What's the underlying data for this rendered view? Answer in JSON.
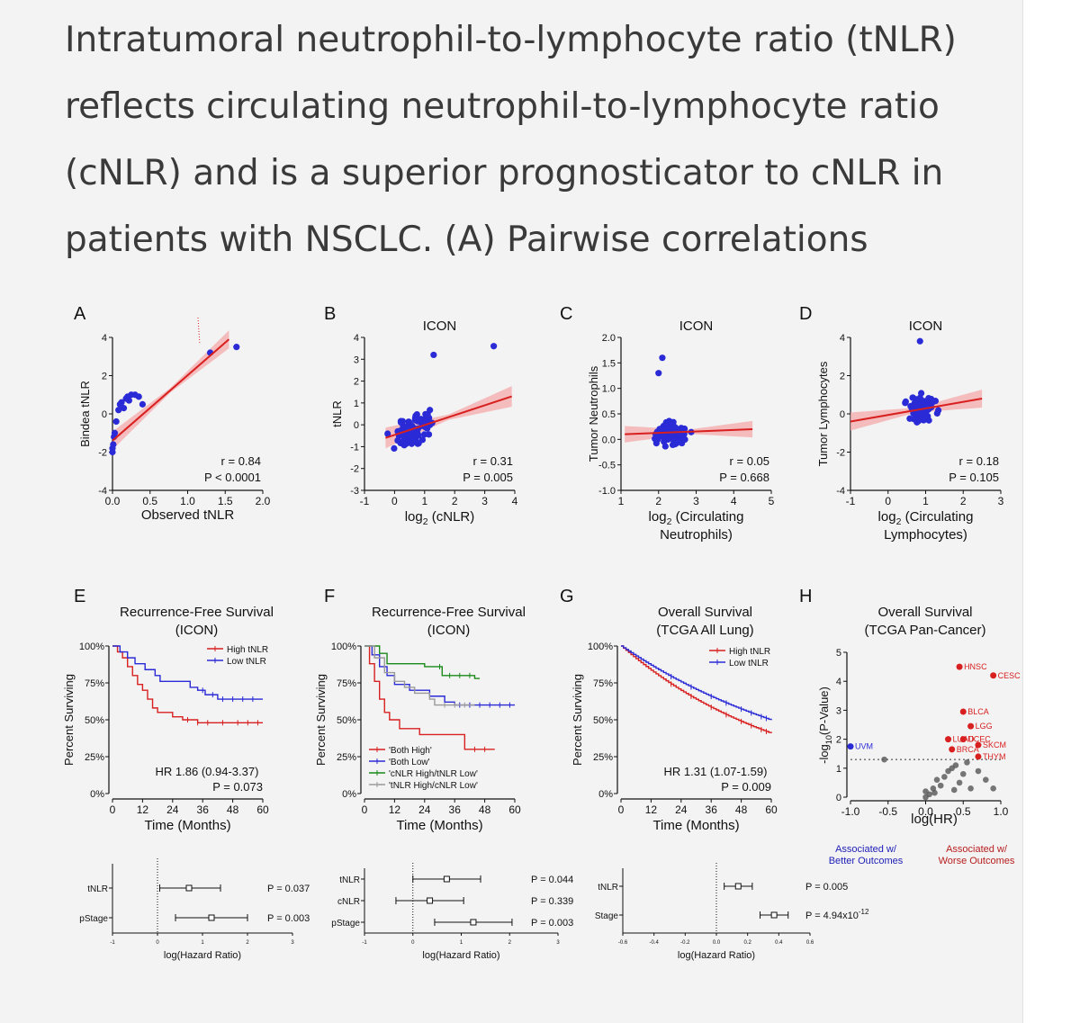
{
  "caption": "Intratumoral neutrophil-to-lymphocyte ratio (tNLR) reflects circulating neutrophil-to-lymphocyte ratio (cNLR) and is a superior prognosticator to cNLR in patients with NSCLC. (A) Pairwise correlations",
  "colors": {
    "blue": "#2a2ad6",
    "red": "#d82020",
    "green": "#1a8a1a",
    "gray": "#9a9a9a",
    "band": "#f4a9a9"
  },
  "panels": {
    "A": {
      "letter": "A",
      "title": "",
      "xlabel": "Observed tNLR",
      "ylabel": "Bindea tNLR",
      "xticks": [
        "0.0",
        "0.5",
        "1.0",
        "1.5",
        "2.0"
      ],
      "yticks": [
        "4",
        "2",
        "0",
        "-2",
        "-4"
      ],
      "xlim": [
        0,
        2
      ],
      "ylim": [
        -4,
        4
      ],
      "r": "r = 0.84",
      "p": "P < 0.0001",
      "points": [
        [
          0.0,
          -1.8
        ],
        [
          0.0,
          -2.0
        ],
        [
          0.01,
          -1.6
        ],
        [
          0.02,
          -1.2
        ],
        [
          0.03,
          -1.0
        ],
        [
          0.05,
          -0.4
        ],
        [
          0.08,
          0.2
        ],
        [
          0.1,
          0.5
        ],
        [
          0.12,
          0.6
        ],
        [
          0.15,
          0.3
        ],
        [
          0.18,
          0.8
        ],
        [
          0.2,
          0.9
        ],
        [
          0.22,
          0.7
        ],
        [
          0.25,
          1.0
        ],
        [
          0.3,
          1.0
        ],
        [
          0.35,
          0.9
        ],
        [
          0.4,
          0.5
        ],
        [
          1.3,
          3.2
        ],
        [
          1.65,
          3.5
        ]
      ],
      "fit": [
        [
          0.0,
          -1.4
        ],
        [
          1.55,
          3.9
        ]
      ]
    },
    "B": {
      "letter": "B",
      "title": "ICON",
      "xlabel": "log",
      "xlabel_sub": "2",
      "xlabel_rest": " (cNLR)",
      "ylabel": "tNLR",
      "xticks": [
        "-1",
        "0",
        "1",
        "2",
        "3",
        "4"
      ],
      "yticks": [
        "4",
        "3",
        "2",
        "1",
        "0",
        "-1",
        "-2",
        "-3"
      ],
      "xlim": [
        -1,
        4
      ],
      "ylim": [
        -3,
        4
      ],
      "r": "r = 0.31",
      "p": "P = 0.005",
      "fit": [
        [
          -0.3,
          -0.6
        ],
        [
          3.9,
          1.3
        ]
      ]
    },
    "C": {
      "letter": "C",
      "title": "ICON",
      "xlabel": "log",
      "xlabel_sub": "2",
      "xlabel_rest": " (Circulating",
      "xlabel2": "Neutrophils)",
      "ylabel": "Tumor Neutrophils",
      "xticks": [
        "1",
        "2",
        "3",
        "4",
        "5"
      ],
      "yticks": [
        "2.0",
        "1.5",
        "1.0",
        "0.5",
        "0.0",
        "-0.5",
        "-1.0"
      ],
      "xlim": [
        1,
        5
      ],
      "ylim": [
        -1,
        2
      ],
      "r": "r = 0.05",
      "p": "P = 0.668",
      "fit": [
        [
          1.1,
          0.1
        ],
        [
          4.5,
          0.2
        ]
      ]
    },
    "D": {
      "letter": "D",
      "title": "ICON",
      "xlabel": "log",
      "xlabel_sub": "2",
      "xlabel_rest": " (Circulating",
      "xlabel2": "Lymphocytes)",
      "ylabel": "Tumor Lymphocytes",
      "xticks": [
        "-1",
        "0",
        "1",
        "2",
        "3"
      ],
      "yticks": [
        "4",
        "2",
        "0",
        "-2",
        "-4"
      ],
      "xlim": [
        -1,
        3
      ],
      "ylim": [
        -4,
        4
      ],
      "r": "r = 0.18",
      "p": "P = 0.105",
      "fit": [
        [
          -1.0,
          -0.4
        ],
        [
          2.5,
          0.8
        ]
      ]
    },
    "E": {
      "letter": "E",
      "title": "Recurrence-Free Survival",
      "title2": "(ICON)",
      "xlabel": "Time (Months)",
      "ylabel": "Percent Surviving",
      "xticks": [
        "0",
        "12",
        "24",
        "36",
        "48",
        "60"
      ],
      "yticks": [
        "100%",
        "75%",
        "50%",
        "25%",
        "0%"
      ],
      "legend": [
        "High tNLR",
        "Low tNLR"
      ],
      "hr": "HR 1.86 (0.94-3.37)",
      "p": "P = 0.073"
    },
    "F": {
      "letter": "F",
      "title": "Recurrence-Free Survival",
      "title2": "(ICON)",
      "xlabel": "Time (Months)",
      "ylabel": "Percent Surviving",
      "xticks": [
        "0",
        "12",
        "24",
        "36",
        "48",
        "60"
      ],
      "yticks": [
        "100%",
        "75%",
        "50%",
        "25%",
        "0%"
      ],
      "legend": [
        "'Both High'",
        "'Both Low'",
        "'cNLR High/tNLR Low'",
        "'tNLR High/cNLR Low'"
      ]
    },
    "G": {
      "letter": "G",
      "title": "Overall Survival",
      "title2": "(TCGA All Lung)",
      "xlabel": "Time (Months)",
      "ylabel": "Percent Surviving",
      "xticks": [
        "0",
        "12",
        "24",
        "36",
        "48",
        "60"
      ],
      "yticks": [
        "100%",
        "75%",
        "50%",
        "25%",
        "0%"
      ],
      "legend": [
        "High tNLR",
        "Low tNLR"
      ],
      "hr": "HR 1.31 (1.07-1.59)",
      "p": "P = 0.009"
    },
    "H": {
      "letter": "H",
      "title": "Overall Survival",
      "title2": "(TCGA Pan-Cancer)",
      "xlabel": "log(HR)",
      "ylabel": "-log",
      "ylabel_sub": "10",
      "ylabel_rest": "(P-Value)",
      "xticks": [
        "-1.0",
        "-0.5",
        "0.0",
        "0.5",
        "1.0"
      ],
      "yticks": [
        "5",
        "4",
        "3",
        "2",
        "1",
        "0"
      ],
      "better": [
        "Associated w/",
        "Better Outcomes"
      ],
      "worse": [
        "Associated w/",
        "Worse Outcomes"
      ],
      "labels": [
        {
          "t": "HNSC",
          "x": 0.45,
          "y": 4.5
        },
        {
          "t": "CESC",
          "x": 0.9,
          "y": 4.2
        },
        {
          "t": "BLCA",
          "x": 0.5,
          "y": 2.95
        },
        {
          "t": "LGG",
          "x": 0.6,
          "y": 2.45
        },
        {
          "t": "LUAD",
          "x": 0.3,
          "y": 2.0
        },
        {
          "t": "UCEC",
          "x": 0.5,
          "y": 2.0
        },
        {
          "t": "SKCM",
          "x": 0.7,
          "y": 1.8
        },
        {
          "t": "BRCA",
          "x": 0.35,
          "y": 1.65
        },
        {
          "t": "THYM",
          "x": 0.7,
          "y": 1.4
        },
        {
          "t": "UVM",
          "x": -1.0,
          "y": 1.75
        }
      ]
    }
  },
  "forests": {
    "I": {
      "xlabel": "log(Hazard Ratio)",
      "xticks": [
        "-1",
        "0",
        "1",
        "2",
        "3"
      ],
      "xlim": [
        -1,
        3
      ],
      "rows": [
        {
          "label": "tNLR",
          "est": 0.7,
          "lo": 0.05,
          "hi": 1.4,
          "p": "P = 0.037"
        },
        {
          "label": "pStage",
          "est": 1.2,
          "lo": 0.4,
          "hi": 2.0,
          "p": "P = 0.003"
        }
      ]
    },
    "J": {
      "xlabel": "log(Hazard Ratio)",
      "xticks": [
        "-1",
        "0",
        "1",
        "2",
        "3"
      ],
      "xlim": [
        -1,
        3
      ],
      "rows": [
        {
          "label": "tNLR",
          "est": 0.7,
          "lo": 0.0,
          "hi": 1.4,
          "p": "P = 0.044"
        },
        {
          "label": "cNLR",
          "est": 0.35,
          "lo": -0.35,
          "hi": 1.05,
          "p": "P = 0.339"
        },
        {
          "label": "pStage",
          "est": 1.25,
          "lo": 0.45,
          "hi": 2.05,
          "p": "P = 0.003"
        }
      ]
    },
    "K": {
      "xlabel": "log(Hazard Ratio)",
      "xticks": [
        "-0.6",
        "-0.4",
        "-0.2",
        "0.0",
        "0.2",
        "0.4",
        "0.6"
      ],
      "xlim": [
        -0.6,
        0.6
      ],
      "rows": [
        {
          "label": "tNLR",
          "est": 0.14,
          "lo": 0.05,
          "hi": 0.23,
          "p": "P = 0.005"
        },
        {
          "label": "Stage",
          "est": 0.37,
          "lo": 0.28,
          "hi": 0.46,
          "p": "P = 4.94x10",
          "p_sup": "-12"
        }
      ]
    }
  }
}
